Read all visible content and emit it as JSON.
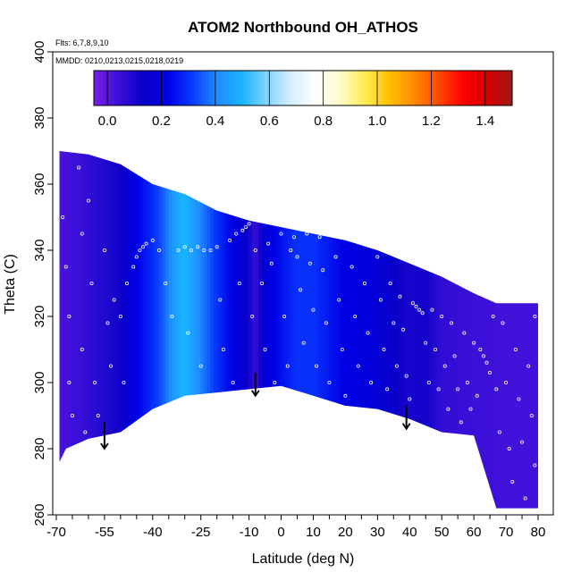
{
  "chart_data": {
    "type": "heatmap",
    "title": "ATOM2 Northbound OH_ATHOS",
    "flights_note": "Flts: 6,7,8,9,10",
    "dates_note": "MMDD: 0210,0213,0215,0218,0219",
    "xlabel": "Latitude (deg N)",
    "ylabel": "Theta (C)",
    "xlim": [
      -70,
      80
    ],
    "ylim": [
      260,
      400
    ],
    "x_ticks": [
      -70,
      -55,
      -40,
      -25,
      -10,
      0,
      10,
      20,
      30,
      40,
      50,
      60,
      70,
      80
    ],
    "x_minor_ticks": [
      -65,
      -60,
      -50,
      -45,
      -35,
      -30,
      -20,
      -15,
      -5,
      5,
      15,
      25,
      35,
      45,
      55,
      65,
      75
    ],
    "y_ticks": [
      260,
      280,
      300,
      320,
      340,
      360,
      380,
      400
    ],
    "colorbar": {
      "range": [
        -0.05,
        1.5
      ],
      "ticks": [
        0.0,
        0.2,
        0.4,
        0.6,
        0.8,
        1.0,
        1.2,
        1.4
      ],
      "tick_labels": [
        "0.0",
        "0.2",
        "0.4",
        "0.6",
        "0.8",
        "1.0",
        "1.2",
        "1.4"
      ],
      "colors": [
        "#7a1fe6",
        "#3b10d8",
        "#0a00c8",
        "#0000e6",
        "#0a3cff",
        "#1f8cff",
        "#19b4ff",
        "#7fd4ff",
        "#d6efff",
        "#ffffff",
        "#fffacc",
        "#ffee55",
        "#ffc000",
        "#ff8a00",
        "#ff4a00",
        "#ff0000",
        "#d40000",
        "#a01818"
      ]
    },
    "field": {
      "top_boundary": [
        [
          -69,
          370
        ],
        [
          -60,
          369
        ],
        [
          -50,
          366
        ],
        [
          -40,
          360
        ],
        [
          -30,
          357
        ],
        [
          -20,
          352
        ],
        [
          -10,
          349
        ],
        [
          0,
          347
        ],
        [
          10,
          345
        ],
        [
          20,
          343
        ],
        [
          30,
          340
        ],
        [
          40,
          336
        ],
        [
          50,
          332
        ],
        [
          60,
          327
        ],
        [
          67,
          324
        ],
        [
          72,
          324
        ],
        [
          80,
          324
        ]
      ],
      "bottom_boundary": [
        [
          -69,
          276
        ],
        [
          -67,
          280
        ],
        [
          -60,
          283
        ],
        [
          -50,
          285
        ],
        [
          -40,
          292
        ],
        [
          -30,
          296
        ],
        [
          -20,
          297
        ],
        [
          -10,
          298
        ],
        [
          0,
          299
        ],
        [
          10,
          296
        ],
        [
          20,
          293
        ],
        [
          30,
          292
        ],
        [
          40,
          289
        ],
        [
          50,
          285
        ],
        [
          60,
          284
        ],
        [
          67,
          262
        ],
        [
          72,
          262
        ],
        [
          80,
          262
        ]
      ],
      "values_by_lat": [
        [
          -69,
          0.02
        ],
        [
          -62,
          0.05
        ],
        [
          -56,
          0.08
        ],
        [
          -50,
          0.12
        ],
        [
          -45,
          0.22
        ],
        [
          -38,
          0.32
        ],
        [
          -33,
          0.45
        ],
        [
          -30,
          0.5
        ],
        [
          -26,
          0.42
        ],
        [
          -20,
          0.3
        ],
        [
          -15,
          0.22
        ],
        [
          -11,
          0.15
        ],
        [
          -8,
          0.05
        ],
        [
          -5,
          0.18
        ],
        [
          0,
          0.25
        ],
        [
          5,
          0.3
        ],
        [
          10,
          0.3
        ],
        [
          15,
          0.26
        ],
        [
          20,
          0.22
        ],
        [
          25,
          0.2
        ],
        [
          30,
          0.18
        ],
        [
          35,
          0.14
        ],
        [
          40,
          0.1
        ],
        [
          45,
          0.12
        ],
        [
          50,
          0.06
        ],
        [
          55,
          0.05
        ],
        [
          60,
          0.04
        ],
        [
          65,
          0.04
        ],
        [
          70,
          0.03
        ],
        [
          75,
          0.03
        ],
        [
          80,
          0.03
        ]
      ]
    },
    "profile_arrows": [
      {
        "lat": -55,
        "theta_top": 288,
        "theta_bottom": 280
      },
      {
        "lat": -8,
        "theta_top": 303,
        "theta_bottom": 296
      },
      {
        "lat": 39,
        "theta_top": 293,
        "theta_bottom": 286
      }
    ],
    "observation_points": [
      [
        -68,
        350
      ],
      [
        -67,
        335
      ],
      [
        -66,
        320
      ],
      [
        -66,
        300
      ],
      [
        -65,
        290
      ],
      [
        -63,
        365
      ],
      [
        -62,
        345
      ],
      [
        -62,
        310
      ],
      [
        -61,
        285
      ],
      [
        -60,
        355
      ],
      [
        -59,
        330
      ],
      [
        -58,
        300
      ],
      [
        -57,
        290
      ],
      [
        -55,
        340
      ],
      [
        -54,
        318
      ],
      [
        -53,
        305
      ],
      [
        -52,
        325
      ],
      [
        -50,
        320
      ],
      [
        -49,
        300
      ],
      [
        -48,
        330
      ],
      [
        -46,
        335
      ],
      [
        -45,
        338
      ],
      [
        -44,
        340
      ],
      [
        -43,
        341
      ],
      [
        -42,
        342
      ],
      [
        -40,
        343
      ],
      [
        -38,
        340
      ],
      [
        -36,
        330
      ],
      [
        -34,
        320
      ],
      [
        -32,
        340
      ],
      [
        -30,
        341
      ],
      [
        -29,
        315
      ],
      [
        -28,
        340
      ],
      [
        -26,
        341
      ],
      [
        -25,
        305
      ],
      [
        -24,
        340
      ],
      [
        -22,
        340
      ],
      [
        -20,
        341
      ],
      [
        -19,
        325
      ],
      [
        -18,
        310
      ],
      [
        -16,
        343
      ],
      [
        -15,
        300
      ],
      [
        -14,
        345
      ],
      [
        -13,
        330
      ],
      [
        -12,
        346
      ],
      [
        -11,
        347
      ],
      [
        -10,
        348
      ],
      [
        -9,
        320
      ],
      [
        -8,
        340
      ],
      [
        -6,
        330
      ],
      [
        -5,
        310
      ],
      [
        -4,
        342
      ],
      [
        -3,
        336
      ],
      [
        -2,
        300
      ],
      [
        0,
        345
      ],
      [
        1,
        320
      ],
      [
        2,
        305
      ],
      [
        3,
        340
      ],
      [
        4,
        344
      ],
      [
        5,
        338
      ],
      [
        6,
        328
      ],
      [
        7,
        312
      ],
      [
        8,
        345
      ],
      [
        9,
        336
      ],
      [
        10,
        322
      ],
      [
        11,
        305
      ],
      [
        12,
        344
      ],
      [
        13,
        334
      ],
      [
        14,
        318
      ],
      [
        15,
        300
      ],
      [
        16,
        345
      ],
      [
        17,
        338
      ],
      [
        18,
        325
      ],
      [
        19,
        310
      ],
      [
        20,
        296
      ],
      [
        21,
        344
      ],
      [
        22,
        335
      ],
      [
        23,
        320
      ],
      [
        24,
        305
      ],
      [
        25,
        344
      ],
      [
        26,
        330
      ],
      [
        27,
        315
      ],
      [
        28,
        300
      ],
      [
        30,
        338
      ],
      [
        31,
        325
      ],
      [
        32,
        310
      ],
      [
        33,
        298
      ],
      [
        34,
        330
      ],
      [
        35,
        318
      ],
      [
        36,
        305
      ],
      [
        37,
        326
      ],
      [
        38,
        316
      ],
      [
        39,
        302
      ],
      [
        40,
        295
      ],
      [
        41,
        324
      ],
      [
        42,
        323
      ],
      [
        43,
        322
      ],
      [
        44,
        321
      ],
      [
        45,
        312
      ],
      [
        46,
        300
      ],
      [
        47,
        322
      ],
      [
        48,
        310
      ],
      [
        49,
        298
      ],
      [
        50,
        320
      ],
      [
        51,
        305
      ],
      [
        52,
        292
      ],
      [
        53,
        318
      ],
      [
        54,
        308
      ],
      [
        55,
        298
      ],
      [
        56,
        288
      ],
      [
        57,
        315
      ],
      [
        58,
        300
      ],
      [
        59,
        292
      ],
      [
        60,
        312
      ],
      [
        61,
        296
      ],
      [
        62,
        310
      ],
      [
        63,
        308
      ],
      [
        64,
        306
      ],
      [
        65,
        303
      ],
      [
        66,
        320
      ],
      [
        67,
        298
      ],
      [
        68,
        285
      ],
      [
        69,
        318
      ],
      [
        70,
        300
      ],
      [
        71,
        280
      ],
      [
        72,
        270
      ],
      [
        73,
        310
      ],
      [
        74,
        295
      ],
      [
        75,
        282
      ],
      [
        76,
        265
      ],
      [
        77,
        305
      ],
      [
        78,
        290
      ],
      [
        79,
        275
      ],
      [
        79,
        320
      ]
    ]
  }
}
